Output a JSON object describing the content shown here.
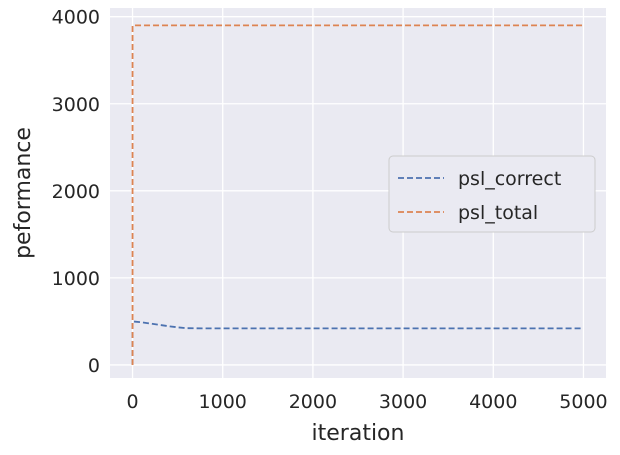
{
  "chart_data": {
    "type": "line",
    "xlabel": "iteration",
    "ylabel": "peformance",
    "xlim": [
      -250,
      5250
    ],
    "ylim": [
      -150,
      4100
    ],
    "xticks": [
      0,
      1000,
      2000,
      3000,
      4000,
      5000
    ],
    "yticks": [
      0,
      1000,
      2000,
      3000,
      4000
    ],
    "grid": true,
    "legend_position": "center-right",
    "background_color": "#EAEAF2",
    "series": [
      {
        "name": "psl_correct",
        "color": "#4C72B0",
        "style": "dashed",
        "points": [
          [
            0,
            0
          ],
          [
            0,
            500
          ],
          [
            100,
            490
          ],
          [
            200,
            475
          ],
          [
            300,
            460
          ],
          [
            400,
            445
          ],
          [
            500,
            432
          ],
          [
            600,
            422
          ],
          [
            800,
            420
          ],
          [
            1000,
            420
          ],
          [
            2000,
            420
          ],
          [
            3000,
            420
          ],
          [
            4000,
            420
          ],
          [
            5000,
            420
          ]
        ]
      },
      {
        "name": "psl_total",
        "color": "#DD8452",
        "style": "dashed",
        "points": [
          [
            0,
            0
          ],
          [
            0,
            3900
          ],
          [
            1000,
            3900
          ],
          [
            2000,
            3900
          ],
          [
            3000,
            3900
          ],
          [
            4000,
            3900
          ],
          [
            5000,
            3900
          ]
        ]
      }
    ]
  }
}
